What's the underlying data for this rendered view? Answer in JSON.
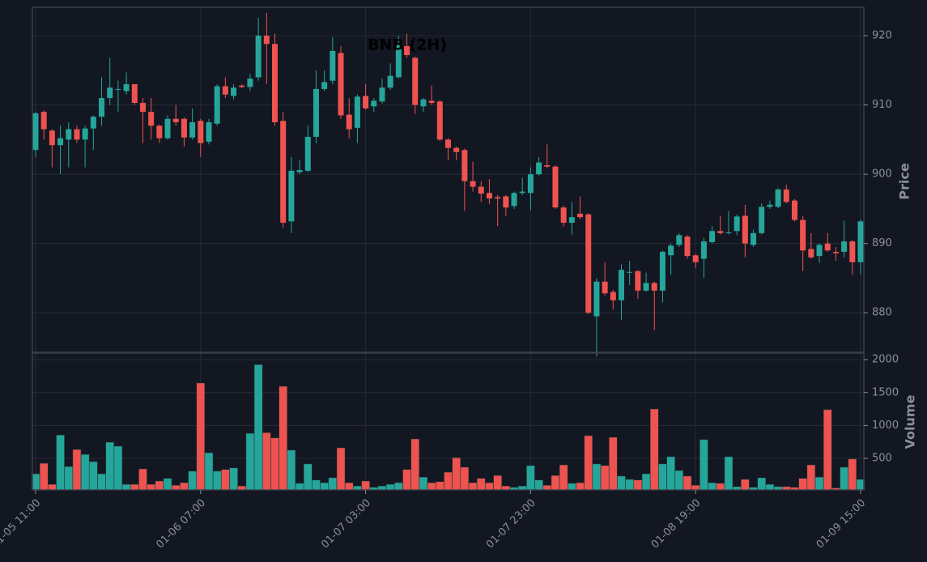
{
  "chart_data": {
    "type": "candlestick",
    "title": "BNB (2H)",
    "ylabel": "Price",
    "categories": [
      "01-05 11:00",
      null,
      null,
      null,
      null,
      null,
      null,
      null,
      null,
      null,
      null,
      null,
      null,
      null,
      null,
      null,
      null,
      null,
      null,
      null,
      "01-06 07:00",
      null,
      null,
      null,
      null,
      null,
      null,
      null,
      null,
      null,
      null,
      null,
      null,
      null,
      null,
      null,
      null,
      null,
      null,
      null,
      "01-07 03:00",
      null,
      null,
      null,
      null,
      null,
      null,
      null,
      null,
      null,
      null,
      null,
      null,
      null,
      null,
      null,
      null,
      null,
      null,
      null,
      "01-07 23:00",
      null,
      null,
      null,
      null,
      null,
      null,
      null,
      null,
      null,
      null,
      null,
      null,
      null,
      null,
      null,
      null,
      null,
      null,
      null,
      "01-08 19:00",
      null,
      null,
      null,
      null,
      null,
      null,
      null,
      null,
      null,
      null,
      null,
      null,
      null,
      null,
      null,
      null,
      null,
      null,
      null,
      "01-09 15:00"
    ],
    "open": [
      903.5,
      909,
      906.3,
      904.2,
      905,
      906.5,
      905,
      906.6,
      908.3,
      911,
      912.2,
      912,
      913,
      910.3,
      909,
      907,
      905.2,
      908,
      908,
      905.3,
      907.7,
      904.7,
      907.3,
      912.7,
      911.3,
      912.8,
      912.6,
      914,
      920,
      918.8,
      907.7,
      893.2,
      900.3,
      900.5,
      905.4,
      912.3,
      913.5,
      917.5,
      908.6,
      906.7,
      911.3,
      909.8,
      910.5,
      912.5,
      914,
      918.5,
      916.8,
      909.8,
      910.6,
      910.5,
      905,
      903.8,
      903.5,
      899,
      898.2,
      897.3,
      896.7,
      896.8,
      895.4,
      897.3,
      897.3,
      900,
      901.3,
      901.1,
      895.2,
      893,
      894.3,
      894.2,
      879.5,
      884.5,
      883,
      881.8,
      885.8,
      886,
      883.2,
      884.3,
      883.2,
      888.3,
      889.8,
      891,
      888.3,
      887.8,
      890.2,
      891.8,
      891.5,
      891.8,
      894,
      889.8,
      891.5,
      895.3,
      895.3,
      897.8,
      896.2,
      893.4,
      889.2,
      888.2,
      890,
      888.8,
      888.8,
      890.3,
      887.3
    ],
    "high": [
      909,
      909.2,
      906.5,
      907,
      907.5,
      907,
      907,
      908.5,
      914,
      916.8,
      913.5,
      914.7,
      913,
      911,
      911,
      907.2,
      908.5,
      910,
      908.2,
      909.5,
      908,
      908,
      913,
      914,
      913,
      913,
      914.5,
      922.6,
      923.3,
      920.3,
      909,
      902.5,
      902,
      907,
      915,
      915,
      919.8,
      918.5,
      911,
      911.5,
      913,
      911,
      913.8,
      916,
      920,
      920.3,
      917,
      911,
      912.8,
      910.7,
      905.2,
      904,
      903.7,
      901.8,
      899,
      899.3,
      897,
      897,
      897.5,
      899.5,
      901,
      902.5,
      904.3,
      901.3,
      895.5,
      896,
      896.8,
      894.4,
      885,
      887.3,
      883.3,
      887,
      887.5,
      886.2,
      885.8,
      884.5,
      889,
      890,
      891.5,
      891.2,
      888.5,
      890.8,
      892.5,
      894,
      894.7,
      894.2,
      895.6,
      892,
      895.8,
      896.2,
      898,
      898.5,
      896.4,
      894,
      891.5,
      890,
      891.5,
      889.5,
      893.3,
      890.5,
      893.5
    ],
    "low": [
      902.5,
      905,
      901,
      900,
      901,
      904.5,
      901,
      903.5,
      907,
      910,
      909,
      911.5,
      910,
      904.5,
      905,
      904.5,
      905,
      907,
      904,
      905,
      902.5,
      904.3,
      907,
      911,
      910.8,
      912.4,
      912,
      913.5,
      913,
      907,
      892.3,
      891.5,
      900,
      900.3,
      904.5,
      912,
      913,
      908,
      905.2,
      904.5,
      909.3,
      909,
      910.2,
      912.2,
      913.8,
      916.8,
      908.7,
      909,
      910,
      904.8,
      902,
      902,
      894.7,
      897.5,
      896,
      895.7,
      892.5,
      894,
      895,
      897,
      894.8,
      899.8,
      900.9,
      895,
      892.5,
      891.3,
      893.5,
      879.8,
      873.7,
      882.5,
      880.5,
      879,
      884,
      882,
      883,
      877.5,
      881.5,
      885.5,
      889.5,
      887.8,
      886.5,
      885,
      890,
      891.3,
      891.3,
      891.2,
      888,
      889.5,
      891.3,
      895,
      895.1,
      895.8,
      893.2,
      886,
      887.8,
      887.2,
      888.8,
      887.5,
      888,
      885.5,
      885.5
    ],
    "close": [
      908.8,
      906.5,
      904.2,
      905.2,
      906.5,
      905,
      906.6,
      908.3,
      911,
      912.5,
      912.3,
      913,
      910.3,
      909,
      907,
      905.2,
      908,
      907.5,
      905.3,
      907.5,
      904.5,
      907.5,
      912.7,
      911.5,
      912.5,
      912.6,
      913.8,
      920,
      918.8,
      907.5,
      893,
      900.5,
      900.6,
      905.4,
      912.3,
      913.3,
      917.8,
      908.5,
      906.5,
      911.2,
      909.5,
      910.6,
      912.5,
      914.2,
      918.8,
      917.2,
      910,
      910.8,
      910.3,
      905,
      903.8,
      903.2,
      899,
      898.2,
      897.2,
      896.5,
      896.5,
      895.2,
      897.3,
      897.5,
      900,
      901.7,
      901.1,
      895.2,
      893,
      893.8,
      893.8,
      880,
      884.5,
      882.8,
      881.8,
      886.2,
      885.9,
      883.2,
      884.3,
      883.2,
      888.8,
      889.7,
      891.2,
      888.2,
      887.3,
      890.3,
      891.8,
      891.5,
      891.6,
      893.9,
      890,
      891.5,
      895.3,
      895.6,
      897.8,
      896,
      893.4,
      889,
      888,
      889.8,
      889,
      888.6,
      890.3,
      887.3,
      893.2
    ],
    "ylim": [
      874.3,
      924.1
    ],
    "yticks": [
      880,
      890,
      900,
      910,
      920
    ],
    "colors": {
      "up": "#26a69a",
      "down": "#ef5350"
    },
    "grid": true,
    "volume": {
      "label": "Volume",
      "values": [
        265,
        425,
        105,
        855,
        375,
        635,
        560,
        450,
        265,
        745,
        685,
        105,
        105,
        340,
        105,
        155,
        195,
        90,
        130,
        305,
        1645,
        585,
        305,
        330,
        355,
        80,
        880,
        1925,
        890,
        810,
        1595,
        625,
        120,
        415,
        170,
        130,
        205,
        660,
        130,
        80,
        155,
        60,
        80,
        105,
        130,
        330,
        795,
        215,
        130,
        145,
        290,
        510,
        365,
        130,
        195,
        130,
        240,
        80,
        60,
        80,
        390,
        170,
        90,
        240,
        400,
        120,
        130,
        845,
        415,
        390,
        820,
        230,
        180,
        170,
        265,
        1250,
        415,
        525,
        315,
        230,
        90,
        785,
        130,
        120,
        525,
        70,
        180,
        60,
        205,
        105,
        70,
        70,
        60,
        195,
        400,
        215,
        1240,
        50,
        365,
        490,
        180
      ],
      "ylim": [
        20,
        2100
      ],
      "yticks": [
        500,
        1000,
        1500,
        2000
      ]
    }
  }
}
